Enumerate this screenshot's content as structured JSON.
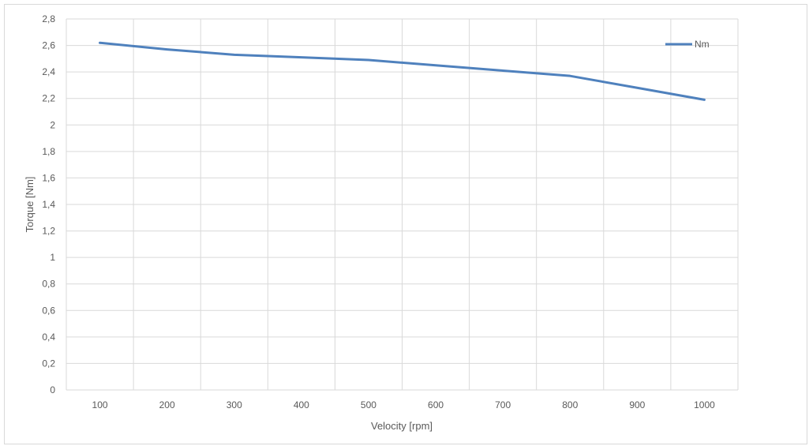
{
  "chart_data": {
    "type": "line",
    "title": "",
    "xlabel": "Velocity [rpm]",
    "ylabel": "Torque [Nm]",
    "x": [
      "100",
      "200",
      "300",
      "400",
      "500",
      "600",
      "700",
      "800",
      "900",
      "1000"
    ],
    "ylim": [
      0,
      2.8
    ],
    "y_ticks": [
      "0",
      "0,2",
      "0,4",
      "0,6",
      "0,8",
      "1",
      "1,2",
      "1,4",
      "1,6",
      "1,8",
      "2",
      "2,2",
      "2,4",
      "2,6",
      "2,8"
    ],
    "grid": true,
    "legend_position": "top-right",
    "series": [
      {
        "name": "Nm",
        "color": "#4f81bd",
        "values": [
          2.62,
          2.57,
          2.53,
          2.51,
          2.49,
          2.45,
          2.41,
          2.37,
          2.28,
          2.19
        ]
      }
    ]
  }
}
